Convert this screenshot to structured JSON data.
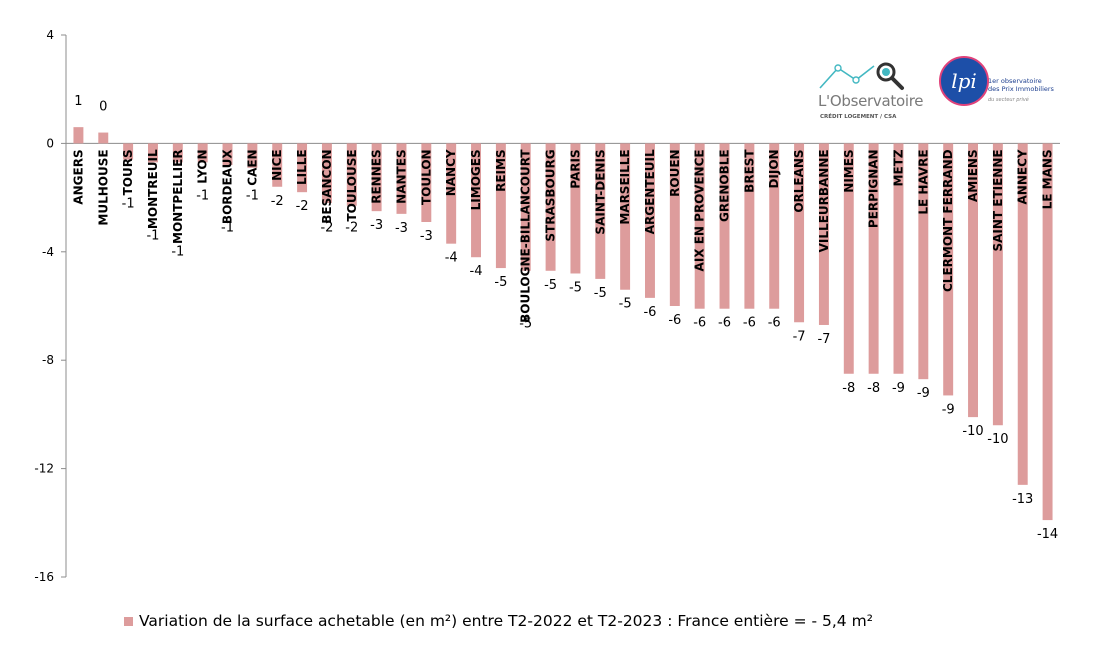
{
  "chart_data": {
    "type": "bar",
    "categories": [
      "ANGERS",
      "MULHOUSE",
      "TOURS",
      "MONTREUIL",
      "MONTPELLIER",
      "LYON",
      "BORDEAUX",
      "CAEN",
      "NICE",
      "LILLE",
      "BESANCON",
      "TOULOUSE",
      "RENNES",
      "NANTES",
      "TOULON",
      "NANCY",
      "LIMOGES",
      "REIMS",
      "BOULOGNE-BILLANCOURT",
      "STRASBOURG",
      "PARIS",
      "SAINT-DENIS",
      "MARSEILLE",
      "ARGENTEUIL",
      "ROUEN",
      "AIX EN PROVENCE",
      "GRENOBLE",
      "BREST",
      "DIJON",
      "ORLEANS",
      "VILLEURBANNE",
      "NIMES",
      "PERPIGNAN",
      "METZ",
      "LE HAVRE",
      "CLERMONT FERRAND",
      "AMIENS",
      "SAINT ETIENNE",
      "ANNECY",
      "LE MANS"
    ],
    "values": [
      0.6,
      0.4,
      -0.6,
      -0.7,
      -0.7,
      -0.7,
      -0.8,
      -0.9,
      -1.6,
      -1.8,
      -2.2,
      -2.3,
      -2.5,
      -2.6,
      -2.9,
      -3.7,
      -4.2,
      -4.6,
      -4.7,
      -4.7,
      -4.8,
      -5.0,
      -5.4,
      -5.7,
      -6.0,
      -6.1,
      -6.1,
      -6.1,
      -6.1,
      -6.6,
      -6.7,
      -8.5,
      -8.5,
      -8.5,
      -8.7,
      -9.3,
      -10.1,
      -10.4,
      -12.6,
      -13.9
    ],
    "data_labels": [
      "1",
      "0",
      "-1",
      "-1",
      "-1",
      "-1",
      "-1",
      "-1",
      "-2",
      "-2",
      "-2",
      "-2",
      "-3",
      "-3",
      "-3",
      "-4",
      "-4",
      "-5",
      "-5",
      "-5",
      "-5",
      "-5",
      "-5",
      "-6",
      "-6",
      "-6",
      "-6",
      "-6",
      "-6",
      "-7",
      "-7",
      "-8",
      "-8",
      "-9",
      "-9",
      "-9",
      "-10",
      "-10",
      "-13",
      "-14"
    ],
    "ylim": [
      -16,
      4
    ],
    "yticks": [
      "4",
      "0",
      "-4",
      "-8",
      "-12",
      "-16"
    ],
    "ytick_values": [
      4,
      0,
      -4,
      -8,
      -12,
      -16
    ],
    "bar_color": "#dd9c9c",
    "grid": false,
    "legend_position": "bottom",
    "legend_label": "Variation de la surface achetable (en m²) entre T2-2022 et T2-2023 : France entière = - 5,4 m²"
  },
  "logos": {
    "observatoire_name": "L'Observatoire",
    "observatoire_sub": "CRÉDIT LOGEMENT / CSA",
    "lpi_mark": "lpi",
    "lpi_text_1": "1er observatoire",
    "lpi_text_2": "des Prix Immobiliers",
    "lpi_text_3": "du secteur privé"
  }
}
